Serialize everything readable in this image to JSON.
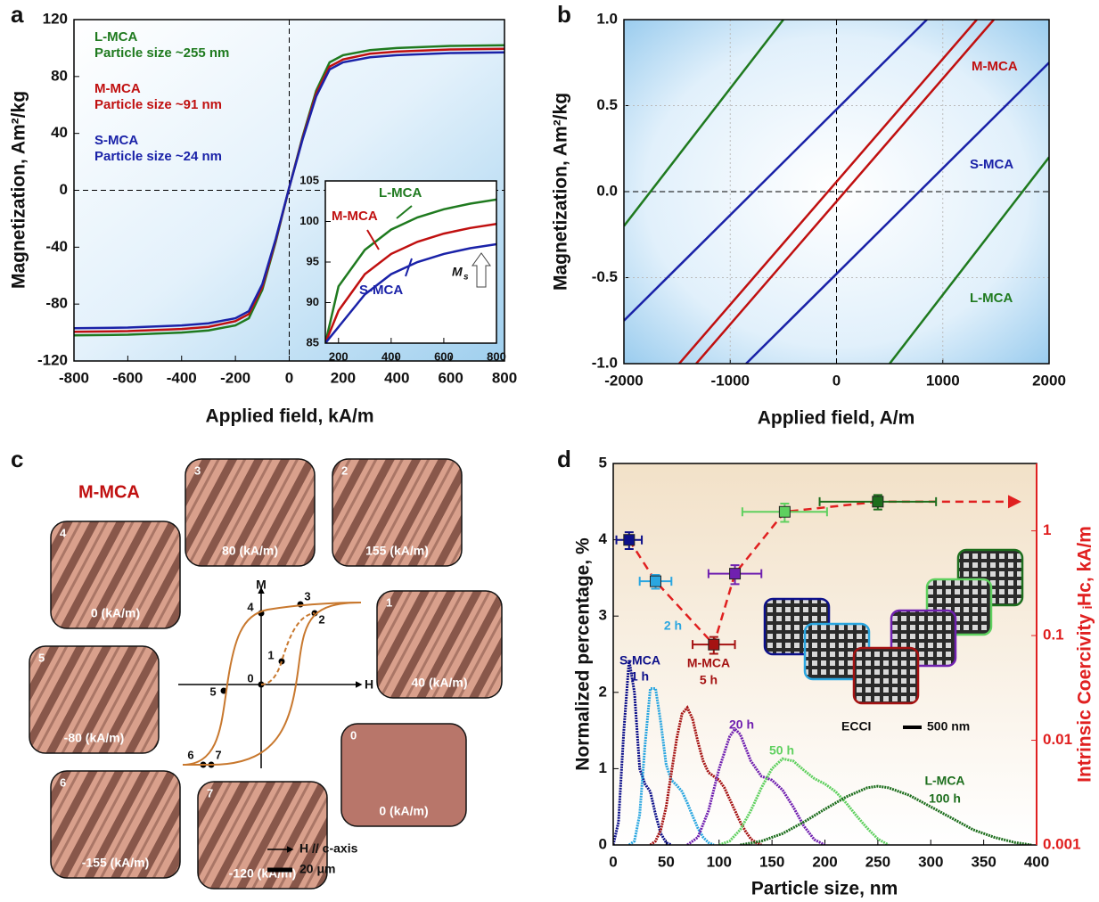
{
  "chart_data": [
    {
      "type": "line",
      "label": "a",
      "x_label": "Applied field, kA/m",
      "y_label": "Magnetization, Am²/kg",
      "xlim": [
        -800,
        800
      ],
      "xticks": [
        -800,
        -600,
        -400,
        -200,
        0,
        200,
        400,
        600,
        800
      ],
      "ylim": [
        -120,
        120
      ],
      "yticks": [
        -120,
        -80,
        -40,
        0,
        40,
        80,
        120
      ],
      "zero_lines": true,
      "x": [
        -800,
        -600,
        -400,
        -300,
        -200,
        -150,
        -100,
        -50,
        0,
        50,
        100,
        150,
        200,
        300,
        400,
        600,
        800
      ],
      "series": [
        {
          "name": "L-MCA",
          "color": "#1f7a1f",
          "values": [
            -102,
            -101.5,
            -100,
            -98.5,
            -95,
            -90,
            -70,
            -36,
            2,
            38,
            70,
            90,
            95,
            98.5,
            100,
            101.5,
            102
          ]
        },
        {
          "name": "M-MCA",
          "color": "#c01010",
          "values": [
            -99.5,
            -99,
            -97.5,
            -96,
            -92,
            -87,
            -68,
            -35,
            2,
            37,
            68,
            87,
            92,
            96,
            97.5,
            99,
            99.5
          ]
        },
        {
          "name": "S-MCA",
          "color": "#1a22a8",
          "values": [
            -97,
            -96.5,
            -95,
            -93.5,
            -90,
            -85,
            -66,
            -34,
            2,
            36,
            66,
            85,
            90,
            93.5,
            95,
            96.5,
            97
          ]
        }
      ],
      "annotations": [
        "Particle size ~255 nm",
        "Particle size ~91 nm",
        "Particle size ~24 nm"
      ]
    },
    {
      "type": "line",
      "xlim": [
        150,
        800
      ],
      "xticks": [
        200,
        400,
        600,
        800
      ],
      "ylim": [
        85,
        105
      ],
      "yticks": [
        85,
        90,
        95,
        100,
        105
      ],
      "x": [
        150,
        200,
        300,
        400,
        500,
        600,
        700,
        800
      ],
      "series": [
        {
          "name": "L-MCA",
          "color": "#1f7a1f",
          "values": [
            85,
            92,
            96.5,
            99,
            100.5,
            101.5,
            102.2,
            102.7
          ]
        },
        {
          "name": "M-MCA",
          "color": "#c01010",
          "values": [
            85,
            89,
            93.5,
            96,
            97.5,
            98.5,
            99.2,
            99.7
          ]
        },
        {
          "name": "S-MCA",
          "color": "#1a22a8",
          "values": [
            85,
            87,
            91,
            93.5,
            95,
            96,
            96.7,
            97.2
          ]
        }
      ],
      "ms_label": {
        "symbol": "M",
        "subscript": "s"
      }
    },
    {
      "type": "line",
      "label": "b",
      "x_label": "Applied field, A/m",
      "y_label": "Magnetization, Am²/kg",
      "xlim": [
        -2000,
        2000
      ],
      "xticks": [
        -2000,
        -1000,
        0,
        1000,
        2000
      ],
      "ylim": [
        -1,
        1
      ],
      "yticks": [
        {
          "value": -1,
          "label": "-1.0"
        },
        -0.5,
        {
          "value": 0,
          "label": "0.0"
        },
        0.5,
        {
          "value": 1,
          "label": "1.0"
        }
      ],
      "grid": true,
      "zero_lines": true,
      "series": [
        {
          "name": "M-MCA",
          "color": "#c01010",
          "x": [
            -1480,
            1320,
            null,
            -1320,
            1480
          ],
          "values": [
            -1,
            1,
            null,
            -1,
            1
          ]
        },
        {
          "name": "S-MCA",
          "color": "#1a22a8",
          "x": [
            -2000,
            850,
            null,
            -850,
            2000
          ],
          "values": [
            -0.75,
            1,
            null,
            -1,
            0.75
          ]
        },
        {
          "name": "L-MCA",
          "color": "#1f7a1f",
          "x": [
            -2000,
            -500,
            null,
            500,
            2000
          ],
          "values": [
            -0.2,
            1,
            null,
            -1,
            0.2
          ]
        }
      ]
    },
    {
      "type": "line",
      "label": "d",
      "x_label": "Particle size, nm",
      "y_label": "Normalized percentage, %",
      "y2_label": "Intrinsic Coercivity ᵢHc, kA/m",
      "xlim": [
        0,
        400
      ],
      "xticks": [
        0,
        50,
        100,
        150,
        200,
        250,
        300,
        350,
        400
      ],
      "ylim": [
        0,
        5
      ],
      "yticks": [
        0,
        1,
        2,
        3,
        4,
        5
      ],
      "y2lim": [
        0.001,
        4.4
      ],
      "y2ticks": [
        0.001,
        0.01,
        0.1,
        1
      ],
      "y2_log": true,
      "y2_color": "#e02020",
      "series": [
        {
          "name": "1 h",
          "color": "#0d108a",
          "x": [
            0,
            5,
            10,
            15,
            20,
            25,
            30,
            35,
            40,
            45,
            50,
            55
          ],
          "values": [
            0,
            0.3,
            1.5,
            2.42,
            2,
            1,
            0.8,
            0.7,
            0.4,
            0.15,
            0.03,
            0
          ]
        },
        {
          "name": "2 h",
          "color": "#2aa6e0",
          "x": [
            15,
            20,
            25,
            30,
            35,
            40,
            45,
            50,
            55,
            60,
            65,
            70,
            75,
            80,
            85,
            90,
            95
          ],
          "values": [
            0,
            0.05,
            0.4,
            1.3,
            2.05,
            2.05,
            1.6,
            1.05,
            0.85,
            0.78,
            0.7,
            0.55,
            0.38,
            0.22,
            0.1,
            0.03,
            0
          ]
        },
        {
          "name": "5 h",
          "color": "#a51212",
          "x": [
            35,
            40,
            45,
            50,
            55,
            60,
            65,
            70,
            75,
            80,
            85,
            90,
            95,
            100,
            105,
            110,
            115,
            120,
            125,
            130,
            135,
            140
          ],
          "values": [
            0,
            0.05,
            0.2,
            0.5,
            0.95,
            1.4,
            1.72,
            1.8,
            1.65,
            1.35,
            1.1,
            0.95,
            0.9,
            0.85,
            0.75,
            0.6,
            0.45,
            0.3,
            0.18,
            0.08,
            0.03,
            0
          ]
        },
        {
          "name": "20 h",
          "color": "#7020b0",
          "x": [
            70,
            80,
            90,
            100,
            110,
            115,
            120,
            130,
            140,
            150,
            160,
            170,
            180,
            190,
            200
          ],
          "values": [
            0,
            0.1,
            0.45,
            1,
            1.42,
            1.52,
            1.45,
            1.1,
            0.9,
            0.85,
            0.72,
            0.5,
            0.25,
            0.07,
            0
          ]
        },
        {
          "name": "50 h",
          "color": "#5fd05f",
          "x": [
            100,
            110,
            120,
            130,
            140,
            150,
            160,
            170,
            180,
            190,
            200,
            210,
            220,
            230,
            240,
            250,
            260
          ],
          "values": [
            0,
            0.05,
            0.2,
            0.45,
            0.75,
            1,
            1.13,
            1.1,
            0.98,
            0.87,
            0.8,
            0.7,
            0.55,
            0.38,
            0.22,
            0.08,
            0
          ]
        },
        {
          "name": "100 h",
          "color": "#1d6e1d",
          "x": [
            120,
            140,
            160,
            180,
            200,
            220,
            240,
            250,
            260,
            280,
            300,
            320,
            340,
            360,
            380,
            395
          ],
          "values": [
            0,
            0.05,
            0.15,
            0.3,
            0.47,
            0.63,
            0.75,
            0.77,
            0.75,
            0.65,
            0.5,
            0.35,
            0.2,
            0.1,
            0.03,
            0
          ]
        },
        {
          "axis": "y2",
          "line_color": "#e02020",
          "colors": [
            "#0d108a",
            "#2aa6e0",
            "#a51212",
            "#7020b0",
            "#5fd05f",
            "#1d6e1d"
          ],
          "x": [
            15,
            40,
            95,
            115,
            162,
            250
          ],
          "values": [
            0.82,
            0.33,
            0.082,
            0.39,
            1.52,
            1.9
          ],
          "x_err": [
            12,
            15,
            20,
            25,
            40,
            55
          ],
          "y_err": [
            0.15,
            0.05,
            0.015,
            0.08,
            0.3,
            0.3
          ]
        }
      ],
      "annotations": [
        "S-MCA",
        "M-MCA",
        "L-MCA",
        "ECCI",
        "500 nm"
      ]
    }
  ],
  "panel_c": {
    "label": "c",
    "title": "M-MCA",
    "axis_m": "M",
    "axis_h": "H",
    "images": [
      {
        "number": "3",
        "field": "80 (kA/m)"
      },
      {
        "number": "2",
        "field": "155 (kA/m)"
      },
      {
        "number": "4",
        "field": "0 (kA/m)"
      },
      {
        "number": "1",
        "field": "40 (kA/m)"
      },
      {
        "number": "5",
        "field": "-80 (kA/m)"
      },
      {
        "number": "0",
        "field": "0 (kA/m)"
      },
      {
        "number": "6",
        "field": "-155 (kA/m)"
      },
      {
        "number": "7",
        "field": "-120 (kA/m)"
      }
    ],
    "points": [
      "0",
      "1",
      "2",
      "3",
      "4",
      "5",
      "6",
      "7"
    ],
    "legend": [
      "H // c-axis",
      "20 μm"
    ]
  }
}
